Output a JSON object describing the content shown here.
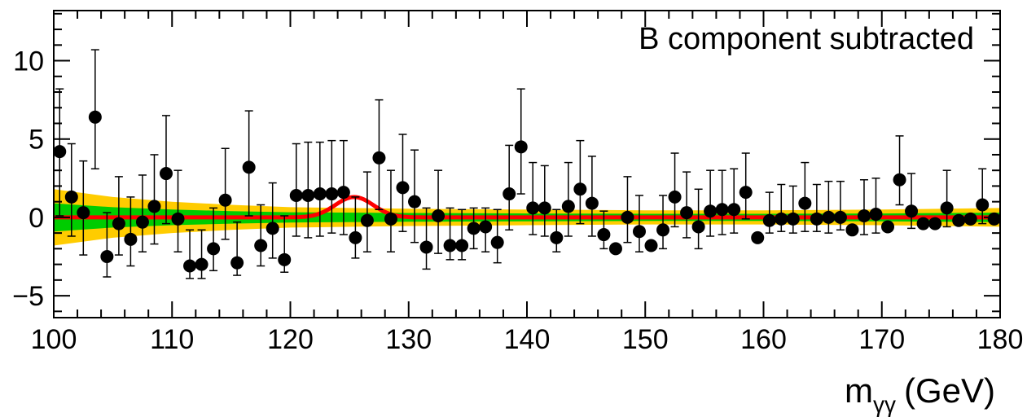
{
  "chart_data": {
    "type": "scatter",
    "annotation": "B component subtracted",
    "xlabel": "m",
    "xlabel_subscript": "γγ",
    "xlabel_unit": "(GeV)",
    "ylabel": "",
    "xlim": [
      100,
      180
    ],
    "ylim": [
      -6.4,
      13.2
    ],
    "x_ticks": [
      100,
      110,
      120,
      130,
      140,
      150,
      160,
      170,
      180
    ],
    "y_ticks": [
      -5,
      0,
      5,
      10
    ],
    "x_tick_labels": [
      "100",
      "110",
      "120",
      "130",
      "140",
      "150",
      "160",
      "170",
      "180"
    ],
    "y_tick_labels": [
      "−5",
      "0",
      "5",
      "10"
    ],
    "colors": {
      "points": "#000000",
      "signal_fit": "#ff0000",
      "band_1sigma": "#00cc00",
      "band_2sigma": "#ffcc00"
    },
    "bands": {
      "x": [
        100,
        105,
        110,
        115,
        120,
        130,
        140,
        150,
        160,
        170,
        180
      ],
      "two_sigma": [
        1.8,
        1.3,
        1.0,
        0.8,
        0.65,
        0.55,
        0.5,
        0.45,
        0.45,
        0.5,
        0.6
      ],
      "one_sigma": [
        0.9,
        0.65,
        0.5,
        0.4,
        0.33,
        0.28,
        0.25,
        0.23,
        0.23,
        0.25,
        0.3
      ]
    },
    "signal": {
      "mass": 125.4,
      "amplitude": 1.3,
      "width": 1.6
    },
    "points": [
      {
        "x": 100.5,
        "y": 4.2,
        "lo": 0.1,
        "hi": 8.2
      },
      {
        "x": 101.5,
        "y": 1.3,
        "lo": -1.2,
        "hi": 4.7
      },
      {
        "x": 102.5,
        "y": 0.3,
        "lo": -2.4,
        "hi": 3.6
      },
      {
        "x": 103.5,
        "y": 6.4,
        "lo": 3.1,
        "hi": 10.7
      },
      {
        "x": 104.5,
        "y": -2.5,
        "lo": -3.8,
        "hi": 0.3
      },
      {
        "x": 105.5,
        "y": -0.4,
        "lo": -2.4,
        "hi": 2.6
      },
      {
        "x": 106.5,
        "y": -1.4,
        "lo": -3.1,
        "hi": 1.3
      },
      {
        "x": 107.5,
        "y": -0.3,
        "lo": -2.2,
        "hi": 2.7
      },
      {
        "x": 108.5,
        "y": 0.7,
        "lo": -1.7,
        "hi": 4.0
      },
      {
        "x": 109.5,
        "y": 2.8,
        "lo": -0.4,
        "hi": 6.5
      },
      {
        "x": 110.5,
        "y": -0.1,
        "lo": -2.2,
        "hi": 3.0
      },
      {
        "x": 111.5,
        "y": -3.1,
        "lo": -3.9,
        "hi": -0.8
      },
      {
        "x": 112.5,
        "y": -3.0,
        "lo": -3.9,
        "hi": -0.8
      },
      {
        "x": 113.5,
        "y": -2.0,
        "lo": -3.4,
        "hi": 0.6
      },
      {
        "x": 114.5,
        "y": 1.1,
        "lo": -1.4,
        "hi": 4.4
      },
      {
        "x": 115.5,
        "y": -2.9,
        "lo": -3.7,
        "hi": -0.3
      },
      {
        "x": 116.5,
        "y": 3.2,
        "lo": 0.1,
        "hi": 6.8
      },
      {
        "x": 117.5,
        "y": -1.8,
        "lo": -3.1,
        "hi": 0.8
      },
      {
        "x": 118.5,
        "y": -0.7,
        "lo": -2.6,
        "hi": 2.2
      },
      {
        "x": 119.5,
        "y": -2.7,
        "lo": -3.5,
        "hi": 0.1
      },
      {
        "x": 120.5,
        "y": 1.4,
        "lo": -1.2,
        "hi": 4.7
      },
      {
        "x": 121.5,
        "y": 1.4,
        "lo": -1.3,
        "hi": 4.8
      },
      {
        "x": 122.5,
        "y": 1.5,
        "lo": -1.2,
        "hi": 4.8
      },
      {
        "x": 123.5,
        "y": 1.5,
        "lo": -1.0,
        "hi": 4.9
      },
      {
        "x": 124.5,
        "y": 1.6,
        "lo": -1.1,
        "hi": 4.9
      },
      {
        "x": 125.5,
        "y": -1.3,
        "lo": -2.6,
        "hi": 1.3
      },
      {
        "x": 126.5,
        "y": -0.2,
        "lo": -2.2,
        "hi": 2.9
      },
      {
        "x": 127.5,
        "y": 3.8,
        "lo": 0.5,
        "hi": 7.5
      },
      {
        "x": 128.5,
        "y": -0.1,
        "lo": -2.2,
        "hi": 3.0
      },
      {
        "x": 129.5,
        "y": 1.9,
        "lo": -0.9,
        "hi": 5.3
      },
      {
        "x": 130.5,
        "y": 1.0,
        "lo": -1.6,
        "hi": 4.3
      },
      {
        "x": 131.5,
        "y": -1.9,
        "lo": -3.3,
        "hi": 0.6
      },
      {
        "x": 132.5,
        "y": 0.1,
        "lo": -2.3,
        "hi": 3.0
      },
      {
        "x": 133.5,
        "y": -1.8,
        "lo": -2.7,
        "hi": 0.6
      },
      {
        "x": 134.5,
        "y": -1.8,
        "lo": -2.7,
        "hi": 0.5
      },
      {
        "x": 135.5,
        "y": -0.7,
        "lo": -2.0,
        "hi": 0.6
      },
      {
        "x": 136.5,
        "y": -0.6,
        "lo": -2.2,
        "hi": 0.6
      },
      {
        "x": 137.5,
        "y": -1.6,
        "lo": -2.9,
        "hi": 0.5
      },
      {
        "x": 138.5,
        "y": 1.5,
        "lo": -0.8,
        "hi": 4.6
      },
      {
        "x": 139.5,
        "y": 4.5,
        "lo": 1.5,
        "hi": 8.2
      },
      {
        "x": 140.5,
        "y": 0.6,
        "lo": -1.1,
        "hi": 3.5
      },
      {
        "x": 141.5,
        "y": 0.6,
        "lo": -1.2,
        "hi": 3.3
      },
      {
        "x": 142.5,
        "y": -1.3,
        "lo": -2.2,
        "hi": 0.5
      },
      {
        "x": 143.5,
        "y": 0.7,
        "lo": -1.2,
        "hi": 3.5
      },
      {
        "x": 144.5,
        "y": 1.8,
        "lo": -0.4,
        "hi": 4.9
      },
      {
        "x": 145.5,
        "y": 0.9,
        "lo": -1.2,
        "hi": 3.9
      },
      {
        "x": 146.5,
        "y": -1.1,
        "lo": -2.0,
        "hi": 0.4
      },
      {
        "x": 147.5,
        "y": -2.0,
        "lo": -2.0,
        "hi": -2.0
      },
      {
        "x": 148.5,
        "y": 0.0,
        "lo": -1.6,
        "hi": 2.6
      },
      {
        "x": 149.5,
        "y": -0.9,
        "lo": -2.2,
        "hi": 1.4
      },
      {
        "x": 150.5,
        "y": -1.8,
        "lo": -1.8,
        "hi": -1.8
      },
      {
        "x": 151.5,
        "y": -0.8,
        "lo": -2.0,
        "hi": 1.4
      },
      {
        "x": 152.5,
        "y": 1.3,
        "lo": -0.6,
        "hi": 4.1
      },
      {
        "x": 153.5,
        "y": 0.3,
        "lo": -1.3,
        "hi": 2.9
      },
      {
        "x": 154.5,
        "y": -0.6,
        "lo": -2.0,
        "hi": 1.8
      },
      {
        "x": 155.5,
        "y": 0.4,
        "lo": -1.2,
        "hi": 3.0
      },
      {
        "x": 156.5,
        "y": 0.5,
        "lo": -1.1,
        "hi": 3.0
      },
      {
        "x": 157.5,
        "y": 0.5,
        "lo": -1.0,
        "hi": 3.1
      },
      {
        "x": 158.5,
        "y": 1.6,
        "lo": -0.1,
        "hi": 4.1
      },
      {
        "x": 159.5,
        "y": -1.3,
        "lo": -1.3,
        "hi": -1.3
      },
      {
        "x": 160.5,
        "y": -0.2,
        "lo": -1.0,
        "hi": 1.6
      },
      {
        "x": 161.5,
        "y": -0.1,
        "lo": -0.9,
        "hi": 2.1
      },
      {
        "x": 162.5,
        "y": -0.1,
        "lo": -1.0,
        "hi": 2.0
      },
      {
        "x": 163.5,
        "y": 0.9,
        "lo": -0.9,
        "hi": 3.5
      },
      {
        "x": 164.5,
        "y": -0.1,
        "lo": -0.9,
        "hi": 2.1
      },
      {
        "x": 165.5,
        "y": 0.0,
        "lo": -1.0,
        "hi": 2.3
      },
      {
        "x": 166.5,
        "y": 0.0,
        "lo": -0.8,
        "hi": 2.3
      },
      {
        "x": 167.5,
        "y": -0.8,
        "lo": -0.8,
        "hi": -0.8
      },
      {
        "x": 168.5,
        "y": 0.1,
        "lo": -1.1,
        "hi": 2.4
      },
      {
        "x": 169.5,
        "y": 0.2,
        "lo": -1.0,
        "hi": 2.5
      },
      {
        "x": 170.5,
        "y": -0.6,
        "lo": -0.6,
        "hi": -0.6
      },
      {
        "x": 171.5,
        "y": 2.4,
        "lo": 0.8,
        "hi": 5.2
      },
      {
        "x": 172.5,
        "y": 0.4,
        "lo": -0.7,
        "hi": 2.8
      },
      {
        "x": 173.5,
        "y": -0.4,
        "lo": -0.4,
        "hi": -0.4
      },
      {
        "x": 174.5,
        "y": -0.4,
        "lo": -0.4,
        "hi": -0.4
      },
      {
        "x": 175.5,
        "y": 0.6,
        "lo": -0.6,
        "hi": 3.0
      },
      {
        "x": 176.5,
        "y": -0.2,
        "lo": -0.2,
        "hi": -0.2
      },
      {
        "x": 177.5,
        "y": -0.1,
        "lo": -0.1,
        "hi": -0.1
      },
      {
        "x": 178.5,
        "y": 0.8,
        "lo": -0.4,
        "hi": 3.1
      },
      {
        "x": 179.5,
        "y": -0.1,
        "lo": -0.1,
        "hi": -0.1
      }
    ]
  }
}
